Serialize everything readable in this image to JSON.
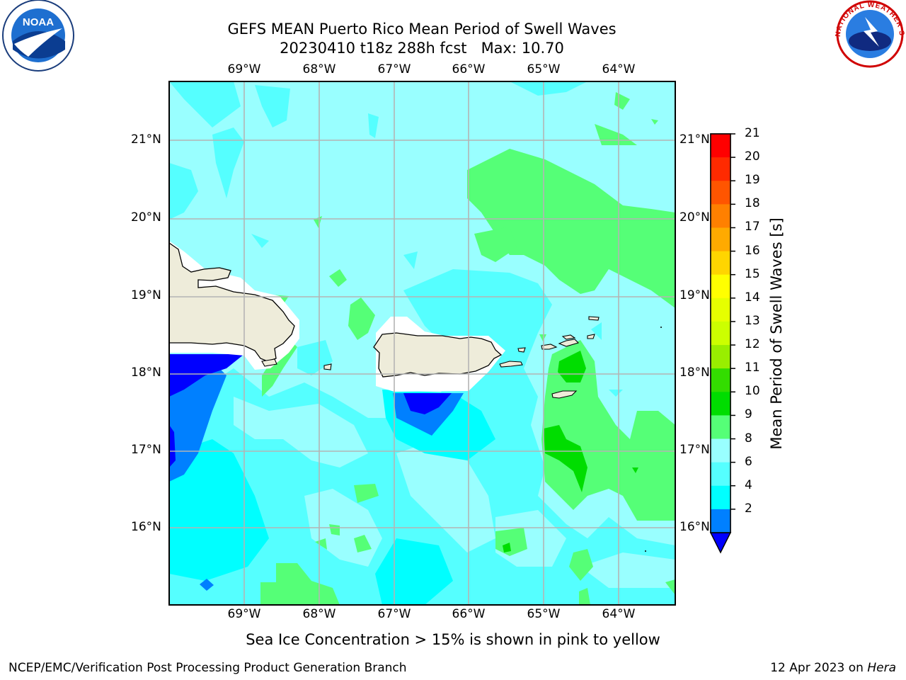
{
  "header": {
    "title_line1": "GEFS MEAN Puerto Rico Mean Period of Swell Waves",
    "title_line2": "20230410 t18z 288h fcst   Max: 10.70"
  },
  "map": {
    "lon_labels": [
      "69°W",
      "68°W",
      "67°W",
      "66°W",
      "65°W",
      "64°W"
    ],
    "lat_labels": [
      "21°N",
      "20°N",
      "19°N",
      "18°N",
      "17°N",
      "16°N"
    ]
  },
  "colorbar": {
    "title": "Mean Period of Swell Waves [s]",
    "ticks": [
      "21",
      "20",
      "19",
      "18",
      "17",
      "16",
      "15",
      "14",
      "13",
      "12",
      "11",
      "10",
      "9",
      "8",
      "6",
      "4",
      "2"
    ],
    "colors": [
      "#ff0000",
      "#ff2a00",
      "#ff5500",
      "#ff8000",
      "#ffaa00",
      "#ffd500",
      "#ffff00",
      "#e6ff00",
      "#ccff00",
      "#99ee00",
      "#33dd00",
      "#00dd00",
      "#55ff77",
      "#99ffff",
      "#55ffff",
      "#00ffff",
      "#0080ff"
    ],
    "under_color": "#0000ff"
  },
  "palette": {
    "land": "#eeecda",
    "ocean_light": "#99ffff",
    "ocean_mid": "#55ffff",
    "ocean_cyan": "#00ffff",
    "green_light": "#55ff77",
    "green_dark": "#00dd00",
    "blue_mid": "#0080ff",
    "blue_dark": "#0000ff"
  },
  "note": "Sea Ice Concentration > 15% is shown in pink to yellow",
  "footer": {
    "left": "NCEP/EMC/Verification Post Processing Product Generation Branch",
    "date": "12 Apr 2023 on",
    "machine": "Hera"
  },
  "logos": {
    "left": "NOAA",
    "right": "NATIONAL WEATHER SERVICE"
  }
}
